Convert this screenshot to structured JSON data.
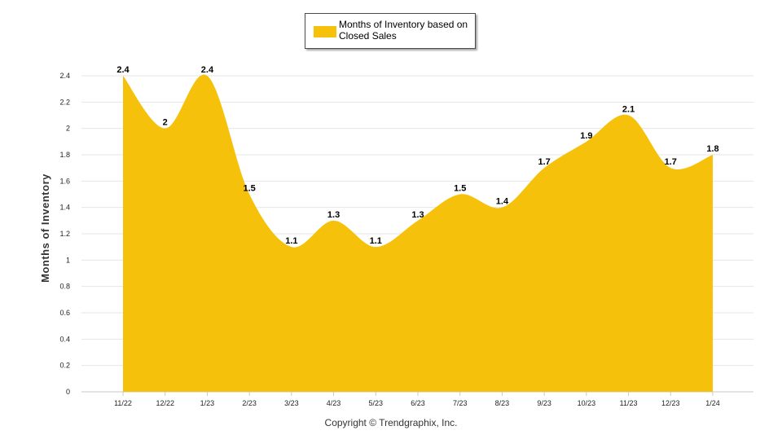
{
  "chart_data": {
    "type": "area",
    "categories": [
      "11/22",
      "12/22",
      "1/23",
      "2/23",
      "3/23",
      "4/23",
      "5/23",
      "6/23",
      "7/23",
      "8/23",
      "9/23",
      "10/23",
      "11/23",
      "12/23",
      "1/24"
    ],
    "series": [
      {
        "name": "Months of Inventory based on Closed Sales",
        "values": [
          2.4,
          2,
          2.4,
          1.5,
          1.1,
          1.3,
          1.1,
          1.3,
          1.5,
          1.4,
          1.7,
          1.9,
          2.1,
          1.7,
          1.8
        ],
        "color": "#f5c10a"
      }
    ],
    "data_labels": [
      "2.4",
      "2",
      "2.4",
      "1.5",
      "1.1",
      "1.3",
      "1.1",
      "1.3",
      "1.5",
      "1.4",
      "1.7",
      "1.9",
      "2.1",
      "1.7",
      "1.8"
    ],
    "ylabel": "Months of Inventory",
    "xlabel": "",
    "ylim": [
      0,
      2.4
    ],
    "yticks": [
      "0",
      "0.2",
      "0.4",
      "0.6",
      "0.8",
      "1",
      "1.2",
      "1.4",
      "1.6",
      "1.8",
      "2",
      "2.2",
      "2.4"
    ],
    "grid": true,
    "legend_position": "top-center"
  },
  "legend": {
    "label": "Months of Inventory based on Closed Sales",
    "color": "#f5c10a"
  },
  "footer": {
    "copyright": "Copyright © Trendgraphix, Inc."
  }
}
